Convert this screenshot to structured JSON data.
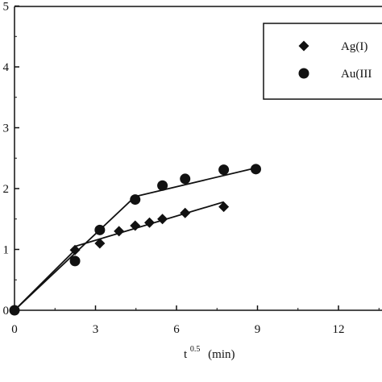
{
  "chart_data": {
    "type": "scatter",
    "title": "",
    "xlabel_base": "t",
    "xlabel_sup": "0.5",
    "xlabel_unit": "(min)",
    "ylabel": "",
    "xlim": [
      0,
      14.5
    ],
    "ylim": [
      0,
      5
    ],
    "x_ticks": [
      0,
      3,
      6,
      9,
      12
    ],
    "x_tick_labels": [
      "0",
      "3",
      "6",
      "9",
      "12"
    ],
    "y_ticks": [
      0,
      1,
      2,
      3,
      4,
      5
    ],
    "y_tick_labels": [
      "0",
      "1",
      "2",
      "3",
      "4",
      "5"
    ],
    "grid": false,
    "legend_position": "top-right",
    "series": [
      {
        "name": "Ag(I)",
        "marker": "diamond",
        "x": [
          0,
          2.24,
          3.16,
          3.87,
          4.47,
          5.0,
          5.48,
          6.32,
          7.75
        ],
        "y": [
          0,
          0.99,
          1.1,
          1.3,
          1.39,
          1.44,
          1.5,
          1.6,
          1.7
        ],
        "fit_lines": [
          {
            "x": [
              0,
              2.24
            ],
            "y": [
              0,
              0.99
            ]
          },
          {
            "x": [
              2.24,
              7.75
            ],
            "y": [
              1.05,
              1.78
            ]
          }
        ]
      },
      {
        "name": "Au(III",
        "marker": "circle",
        "x": [
          0,
          2.24,
          3.16,
          4.47,
          5.48,
          6.32,
          7.75,
          8.94
        ],
        "y": [
          0,
          0.81,
          1.32,
          1.82,
          2.05,
          2.16,
          2.31,
          2.32
        ],
        "fit_lines": [
          {
            "x": [
              0,
              4.47
            ],
            "y": [
              0,
              1.87
            ]
          },
          {
            "x": [
              4.47,
              8.94
            ],
            "y": [
              1.87,
              2.34
            ]
          }
        ]
      }
    ]
  }
}
